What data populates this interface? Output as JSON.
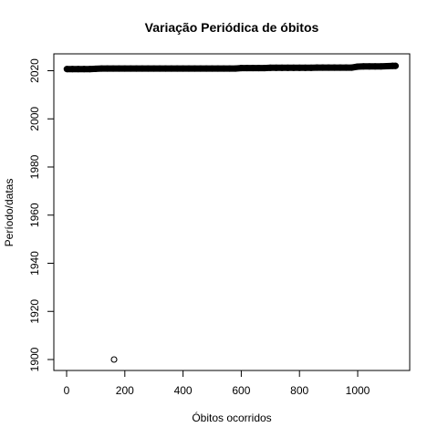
{
  "chart_data": {
    "type": "scatter",
    "title": "Variação Periódica de óbitos",
    "xlabel": "Óbitos ocorridos",
    "ylabel": "Período/datas",
    "xlim": [
      0,
      1130
    ],
    "ylim": [
      1900,
      2022
    ],
    "x_ticks": [
      0,
      200,
      400,
      600,
      800,
      1000
    ],
    "y_ticks": [
      1900,
      1920,
      1940,
      1960,
      1980,
      2000,
      2020
    ],
    "grid": false,
    "legend": "none",
    "marker": "open-circle",
    "series": [
      {
        "x": [
          1,
          20,
          40,
          60,
          80,
          100,
          120,
          140,
          160,
          180,
          200,
          220,
          240,
          260,
          280,
          300,
          320,
          340,
          360,
          380,
          400,
          420,
          440,
          460,
          480,
          500,
          520,
          540,
          560,
          580,
          600,
          620,
          640,
          660,
          680,
          700,
          720,
          740,
          760,
          780,
          800,
          820,
          840,
          860,
          880,
          900,
          920,
          940,
          960,
          980,
          1000,
          1020,
          1040,
          1060,
          1080,
          1100,
          1120,
          1130,
          163
        ],
        "y": [
          2020.7,
          2020.7,
          2020.7,
          2020.7,
          2020.7,
          2020.8,
          2020.9,
          2020.9,
          2020.9,
          2020.9,
          2020.9,
          2020.9,
          2020.9,
          2020.9,
          2020.9,
          2020.9,
          2020.9,
          2020.9,
          2020.9,
          2020.9,
          2020.9,
          2020.9,
          2020.9,
          2020.9,
          2020.9,
          2020.9,
          2020.9,
          2020.9,
          2020.9,
          2020.9,
          2021.1,
          2021.1,
          2021.1,
          2021.1,
          2021.1,
          2021.2,
          2021.2,
          2021.2,
          2021.2,
          2021.2,
          2021.2,
          2021.2,
          2021.2,
          2021.3,
          2021.3,
          2021.3,
          2021.3,
          2021.3,
          2021.3,
          2021.3,
          2021.7,
          2021.8,
          2021.8,
          2021.8,
          2021.8,
          2021.9,
          2022.0,
          2022.0,
          1900
        ]
      }
    ]
  }
}
